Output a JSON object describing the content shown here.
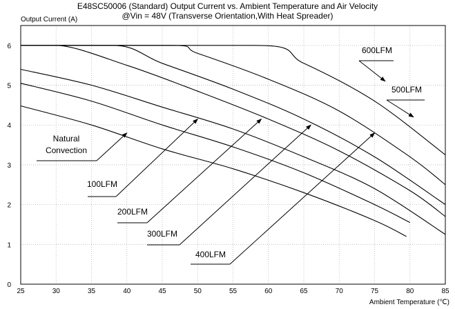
{
  "title_line1": "E48SC50006 (Standard)  Output Current vs. Ambient Temperature and Air Velocity",
  "title_line2": "@Vin = 48V (Transverse Orientation,With Heat Spreader)",
  "chart_data": {
    "type": "line",
    "title": "E48SC50006 (Standard)  Output Current vs. Ambient Temperature and Air Velocity @Vin = 48V (Transverse Orientation,With Heat Spreader)",
    "xlabel": "Ambient Temperature (℃)",
    "ylabel": "Output Current (A)",
    "xlim": [
      25,
      85
    ],
    "ylim": [
      0,
      6.5
    ],
    "xticks": [
      25,
      30,
      35,
      40,
      45,
      50,
      55,
      60,
      65,
      70,
      75,
      80,
      85
    ],
    "yticks": [
      0,
      1,
      2,
      3,
      4,
      5,
      6
    ],
    "grid": true,
    "series": [
      {
        "name": "Natural Convection",
        "points": [
          [
            25,
            4.48
          ],
          [
            35,
            4.0
          ],
          [
            45,
            3.4
          ],
          [
            55,
            2.9
          ],
          [
            65,
            2.3
          ],
          [
            75,
            1.6
          ],
          [
            79.5,
            1.2
          ]
        ]
      },
      {
        "name": "100LFM",
        "points": [
          [
            25,
            5.05
          ],
          [
            35,
            4.6
          ],
          [
            45,
            4.0
          ],
          [
            55,
            3.45
          ],
          [
            65,
            2.8
          ],
          [
            75,
            2.0
          ],
          [
            80,
            1.55
          ]
        ]
      },
      {
        "name": "200LFM",
        "points": [
          [
            25,
            5.4
          ],
          [
            35,
            5.0
          ],
          [
            45,
            4.45
          ],
          [
            55,
            3.9
          ],
          [
            65,
            3.2
          ],
          [
            75,
            2.4
          ],
          [
            85,
            1.25
          ]
        ]
      },
      {
        "name": "300LFM",
        "points": [
          [
            25,
            6.0
          ],
          [
            30,
            6.0
          ],
          [
            40,
            5.5
          ],
          [
            50,
            4.85
          ],
          [
            60,
            4.15
          ],
          [
            70,
            3.35
          ],
          [
            80,
            2.35
          ],
          [
            85,
            1.7
          ]
        ]
      },
      {
        "name": "400LFM",
        "points": [
          [
            25,
            6.0
          ],
          [
            38,
            6.0
          ],
          [
            45,
            5.55
          ],
          [
            55,
            4.9
          ],
          [
            65,
            4.15
          ],
          [
            75,
            3.2
          ],
          [
            85,
            2.0
          ]
        ]
      },
      {
        "name": "500LFM",
        "points": [
          [
            25,
            6.0
          ],
          [
            46,
            6.0
          ],
          [
            50,
            5.8
          ],
          [
            60,
            5.15
          ],
          [
            70,
            4.35
          ],
          [
            80,
            3.2
          ],
          [
            85,
            2.5
          ]
        ]
      },
      {
        "name": "600LFM",
        "points": [
          [
            25,
            6.0
          ],
          [
            58,
            6.0
          ],
          [
            65,
            5.55
          ],
          [
            75,
            4.6
          ],
          [
            85,
            3.25
          ]
        ]
      }
    ],
    "annotations": [
      {
        "text": "Natural",
        "line2": "Convection",
        "arrow_to": [
          40,
          3.8
        ]
      },
      {
        "text": "100LFM",
        "arrow_to": [
          50,
          4.15
        ]
      },
      {
        "text": "200LFM",
        "arrow_to": [
          59,
          4.15
        ]
      },
      {
        "text": "300LFM",
        "arrow_to": [
          66,
          4.0
        ]
      },
      {
        "text": "400LFM",
        "arrow_to": [
          75,
          3.8
        ]
      },
      {
        "text": "500LFM",
        "arrow_to": [
          80.5,
          4.2
        ]
      },
      {
        "text": "600LFM",
        "arrow_to": [
          76.5,
          5.1
        ]
      }
    ]
  }
}
